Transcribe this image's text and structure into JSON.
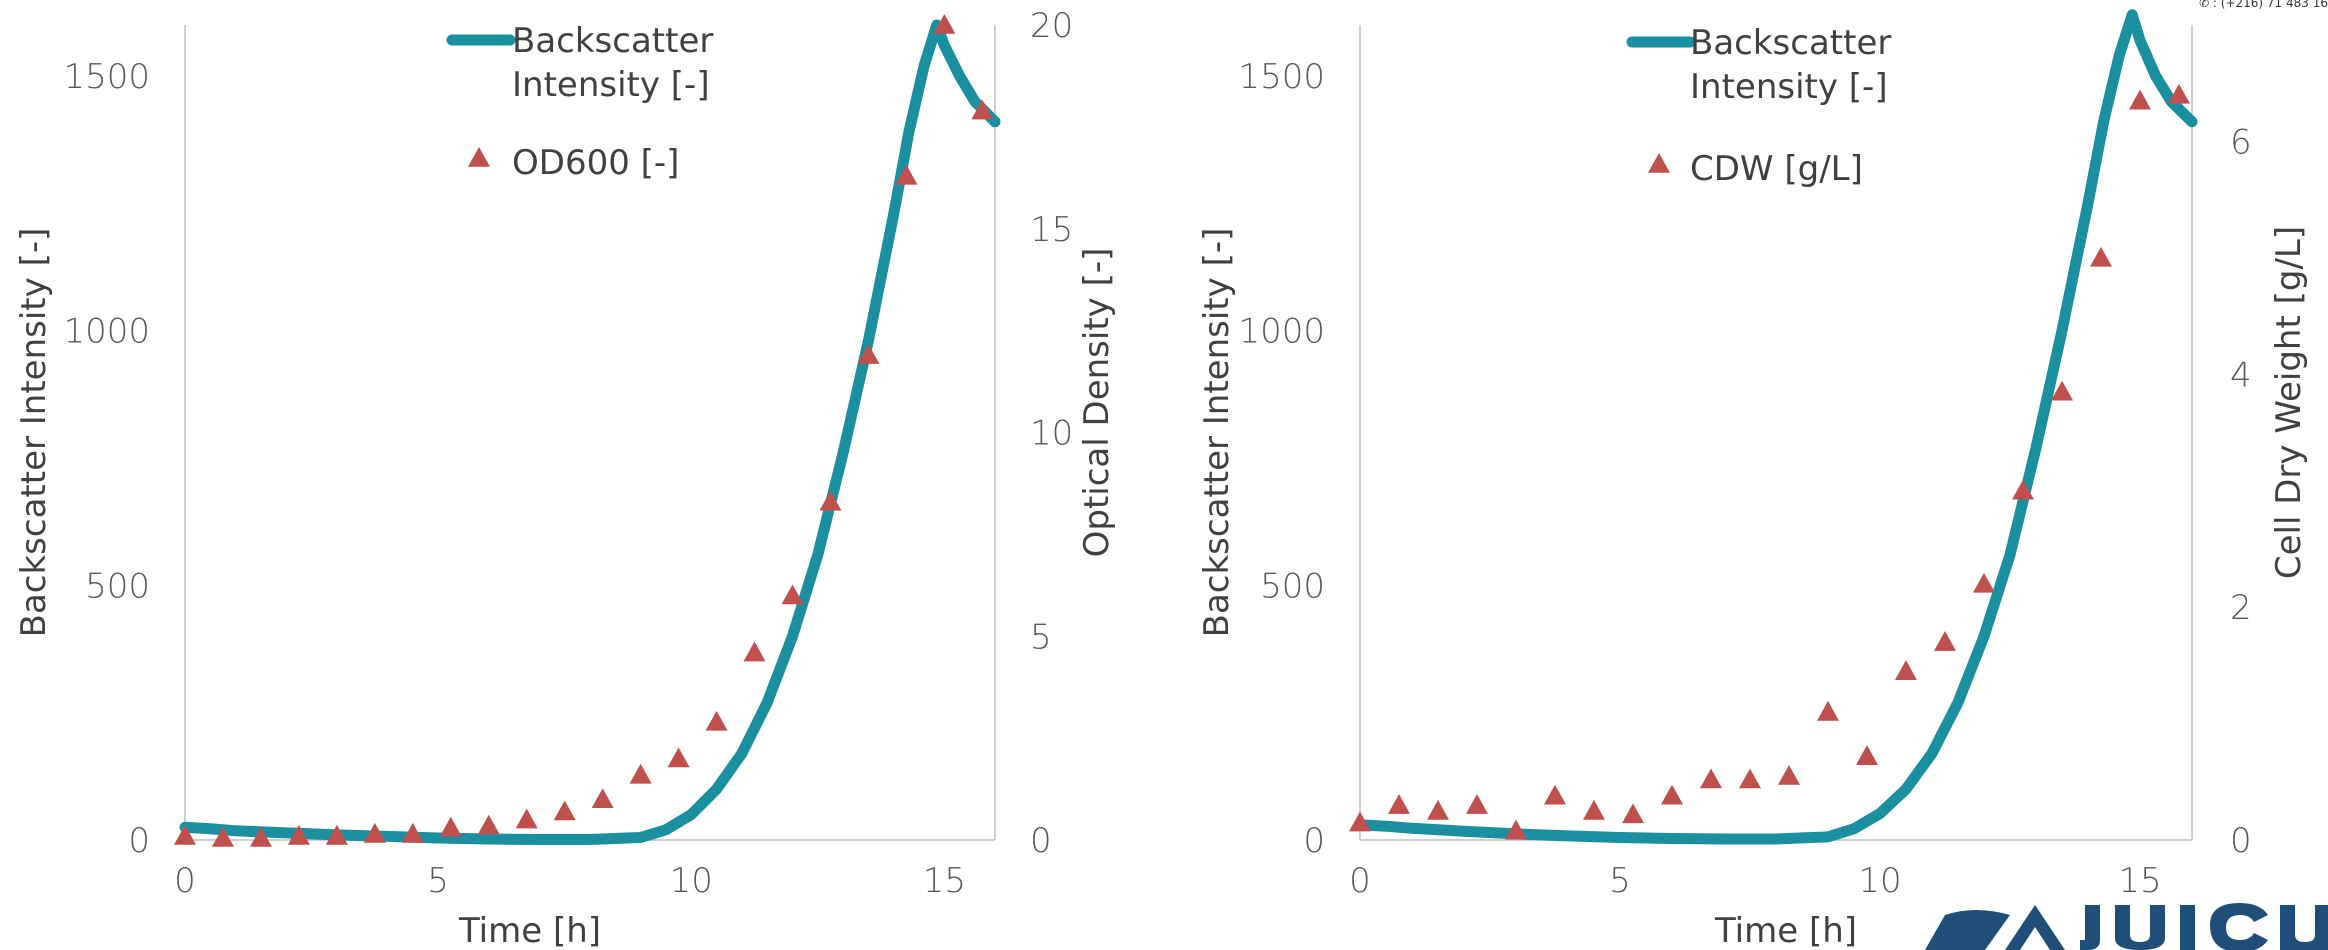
{
  "corner_note": "✆ : (+216) 71 483 16",
  "colors": {
    "series_line": "#1a8fa0",
    "series_marker": "#c0504d",
    "axis": "#bfbfbf",
    "logo": "#1f4e79"
  },
  "chart_data": [
    {
      "type": "line+scatter",
      "title": "",
      "xlabel": "Time [h]",
      "ylabel": "Backscatter Intensity [-]",
      "y2label": "Optical Density [-]",
      "xlim": [
        0,
        16
      ],
      "ylim": [
        0,
        1600
      ],
      "y2lim": [
        0,
        20
      ],
      "xticks": [
        "0",
        "5",
        "10",
        "15"
      ],
      "yticks": [
        "0",
        "500",
        "1000",
        "1500"
      ],
      "y2ticks": [
        "0",
        "5",
        "10",
        "15",
        "20"
      ],
      "legend_position": "top-center",
      "series": [
        {
          "name": "Backscatter Intensity [-]",
          "kind": "line",
          "axis": "y",
          "x": [
            0,
            0.5,
            1,
            2,
            3,
            4,
            5,
            6,
            7,
            8,
            9,
            9.5,
            10,
            10.5,
            11,
            11.5,
            12,
            12.5,
            13,
            13.5,
            14,
            14.3,
            14.6,
            14.85,
            15,
            15.3,
            15.6,
            16
          ],
          "values": [
            25,
            22,
            18,
            14,
            10,
            7,
            4,
            2,
            1,
            1,
            5,
            20,
            50,
            100,
            170,
            270,
            400,
            560,
            760,
            980,
            1230,
            1390,
            1520,
            1600,
            1560,
            1500,
            1450,
            1410
          ]
        },
        {
          "name": "OD600 [-]",
          "kind": "scatter",
          "axis": "y2",
          "x": [
            0,
            0.75,
            1.5,
            2.25,
            3,
            3.75,
            4.5,
            5.25,
            6,
            6.75,
            7.5,
            8.25,
            9,
            9.75,
            10.5,
            11.25,
            12,
            12.75,
            13.5,
            14.25,
            15,
            15.75
          ],
          "values": [
            0.1,
            0.05,
            0.05,
            0.1,
            0.1,
            0.15,
            0.15,
            0.3,
            0.35,
            0.5,
            0.7,
            1.0,
            1.6,
            2.0,
            2.9,
            4.6,
            6.0,
            8.3,
            11.9,
            16.3,
            20.0,
            17.9
          ]
        }
      ]
    },
    {
      "type": "line+scatter",
      "title": "",
      "xlabel": "Time [h]",
      "ylabel": "Backscatter Intensity [-]",
      "y2label": "Cell Dry Weight [g/L]",
      "xlim": [
        0,
        16
      ],
      "ylim": [
        0,
        1600
      ],
      "y2lim": [
        0,
        7
      ],
      "xticks": [
        "0",
        "5",
        "10",
        "15"
      ],
      "yticks": [
        "0",
        "500",
        "1000",
        "1500"
      ],
      "y2ticks": [
        "0",
        "2",
        "4",
        "6"
      ],
      "legend_position": "top-center",
      "series": [
        {
          "name": "Backscatter Intensity [-]",
          "kind": "line",
          "axis": "y",
          "x": [
            0,
            0.5,
            1,
            2,
            3,
            4,
            5,
            6,
            7,
            8,
            9,
            9.5,
            10,
            10.5,
            11,
            11.5,
            12,
            12.5,
            13,
            13.5,
            14,
            14.3,
            14.6,
            14.85,
            15,
            15.3,
            15.6,
            16
          ],
          "values": [
            30,
            27,
            23,
            17,
            12,
            8,
            5,
            3,
            2,
            2,
            6,
            22,
            52,
            100,
            170,
            270,
            400,
            560,
            770,
            1000,
            1250,
            1410,
            1540,
            1620,
            1570,
            1500,
            1450,
            1410
          ]
        },
        {
          "name": "CDW [g/L]",
          "kind": "scatter",
          "axis": "y2",
          "x": [
            0,
            0.75,
            1.5,
            2.25,
            3,
            3.75,
            4.5,
            5.25,
            6,
            6.75,
            7.5,
            8.25,
            9,
            9.75,
            10.5,
            11.25,
            12,
            12.75,
            13.5,
            14.25,
            15,
            15.75
          ],
          "values": [
            0.15,
            0.3,
            0.25,
            0.3,
            0.08,
            0.38,
            0.25,
            0.22,
            0.38,
            0.52,
            0.52,
            0.55,
            1.1,
            0.72,
            1.45,
            1.7,
            2.2,
            3.0,
            3.85,
            5.0,
            6.35,
            6.4
          ]
        }
      ]
    }
  ]
}
